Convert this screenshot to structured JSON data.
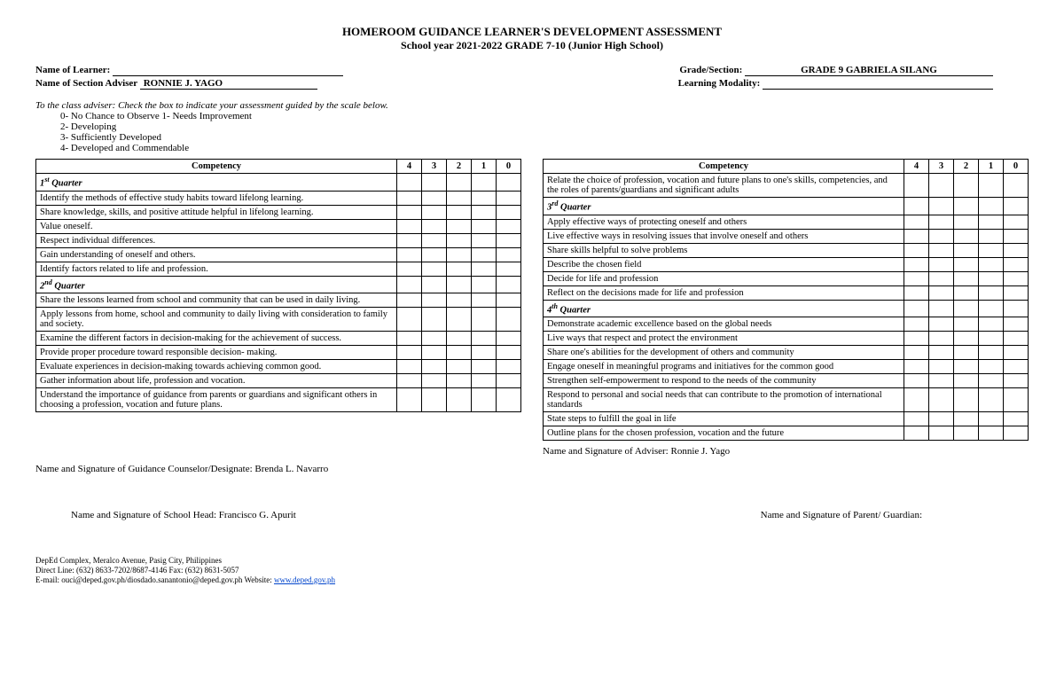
{
  "header": {
    "title": "HOMEROOM GUIDANCE LEARNER'S DEVELOPMENT ASSESSMENT",
    "subtitle": "School year 2021-2022 GRADE 7-10 (Junior High School)"
  },
  "info": {
    "learner_label": "Name of Learner: ",
    "learner_value": "",
    "adviser_label": "Name of Section Adviser ",
    "adviser_value": "  RONNIE J. YAGO",
    "grade_label": "Grade/Section: ",
    "grade_value": "GRADE 9 GABRIELA SILANG",
    "modality_label": "Learning Modality: ",
    "modality_value": ""
  },
  "instructions": "To the class adviser: Check the box to indicate your assessment guided by the scale below.",
  "scale": [
    "0- No Chance to Observe 1- Needs Improvement",
    "2- Developing",
    "3- Sufficiently Developed",
    "4- Developed and Commendable"
  ],
  "table_headers": {
    "competency": "Competency",
    "cols": [
      "4",
      "3",
      "2",
      "1",
      "0"
    ]
  },
  "left_rows": [
    {
      "type": "quarter",
      "html": "1<sup>st</sup> Quarter"
    },
    {
      "type": "item",
      "text": "Identify the methods of effective study habits toward lifelong learning."
    },
    {
      "type": "item",
      "text": "Share knowledge, skills, and positive attitude helpful in lifelong learning."
    },
    {
      "type": "item",
      "text": "Value oneself."
    },
    {
      "type": "item",
      "text": "Respect individual differences."
    },
    {
      "type": "item",
      "text": "Gain understanding of oneself and others."
    },
    {
      "type": "item",
      "text": "Identify factors related to life and profession."
    },
    {
      "type": "quarter",
      "html": "2<sup>nd</sup> Quarter"
    },
    {
      "type": "item",
      "text": "Share the lessons learned from school and community that can be used in daily living."
    },
    {
      "type": "item",
      "text": "Apply lessons from home, school and community to daily living with consideration to family and society."
    },
    {
      "type": "item",
      "text": "Examine the different factors in decision-making for the achievement of success."
    },
    {
      "type": "item",
      "text": "Provide proper procedure toward responsible decision- making."
    },
    {
      "type": "item",
      "text": "Evaluate experiences in decision-making towards achieving common good."
    },
    {
      "type": "item",
      "text": "Gather information about life, profession and vocation."
    },
    {
      "type": "item",
      "text": "Understand the importance of guidance from parents or guardians and significant others in choosing a profession, vocation and future plans."
    }
  ],
  "right_rows": [
    {
      "type": "item",
      "text": "Relate the choice of profession, vocation and future plans to one's skills, competencies, and the roles of parents/guardians and significant adults"
    },
    {
      "type": "quarter",
      "html": "3<sup>rd</sup> Quarter"
    },
    {
      "type": "item",
      "text": "Apply effective ways of protecting oneself and others"
    },
    {
      "type": "item",
      "text": "Live effective ways in resolving issues that involve oneself and others"
    },
    {
      "type": "item",
      "text": "Share skills helpful to solve problems"
    },
    {
      "type": "item",
      "text": "Describe the chosen field"
    },
    {
      "type": "item",
      "text": "Decide for life and profession"
    },
    {
      "type": "item",
      "text": "Reflect on the decisions made for life and profession"
    },
    {
      "type": "quarter",
      "html": "4<sup>th</sup> Quarter"
    },
    {
      "type": "item",
      "text": "Demonstrate academic excellence based on the global needs"
    },
    {
      "type": "item",
      "text": "Live ways that respect and protect the environment"
    },
    {
      "type": "item",
      "text": "Share one's abilities for the development of others and community"
    },
    {
      "type": "item",
      "text": "Engage oneself in meaningful programs and initiatives for the common good"
    },
    {
      "type": "item",
      "text": "Strengthen self-empowerment to respond to the needs of the community"
    },
    {
      "type": "item",
      "text": "Respond to personal and social needs that can contribute to the promotion of international standards"
    },
    {
      "type": "item",
      "text": "State steps to fulfill the goal in life"
    },
    {
      "type": "item",
      "text": "Outline plans for the chosen profession, vocation and the future"
    }
  ],
  "signatures": {
    "counselor": "Name and Signature of Guidance Counselor/Designate: Brenda L. Navarro",
    "adviser": "Name and Signature of Adviser:  Ronnie J. Yago",
    "school_head": "Name and Signature of School Head:  Francisco G. Apurit",
    "parent": "Name and Signature of Parent/ Guardian:"
  },
  "footer": {
    "line1": "DepEd Complex, Meralco Avenue, Pasig City, Philippines",
    "line2": "Direct Line: (632) 8633-7202/8687-4146 Fax: (632) 8631-5057",
    "line3_pre": "E-mail:  ouci@deped.gov.ph/diosdado.sanantonio@deped.gov.ph   Website:   ",
    "link": "www.deped.gov.ph"
  }
}
